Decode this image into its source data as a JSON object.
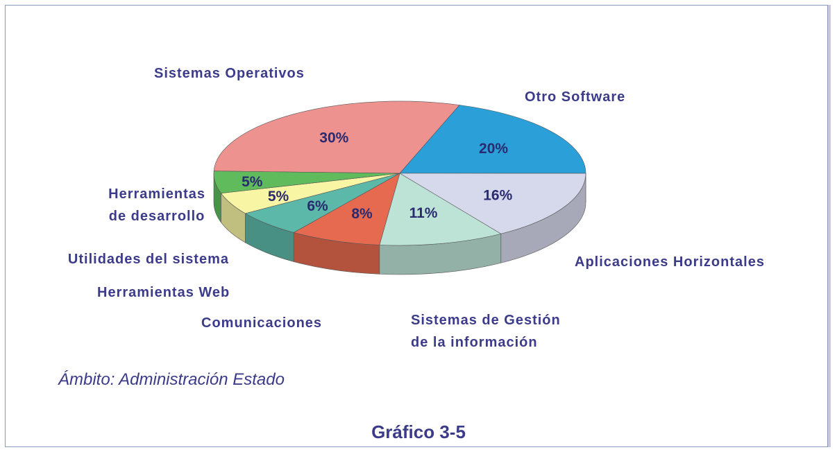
{
  "chart_data": {
    "type": "pie",
    "title": "Gráfico 3-5",
    "subtitle": "Ámbito: Administración Estado",
    "categories": [
      "Sistemas Operativos",
      "Otro Software",
      "Aplicaciones Horizontales",
      "Sistemas de Gestión\nde la información",
      "Comunicaciones",
      "Herramientas Web",
      "Utilidades del sistema",
      "Herramientas\nde desarrollo"
    ],
    "values": [
      30,
      20,
      16,
      11,
      8,
      6,
      5,
      5
    ],
    "value_labels": [
      "30%",
      "20%",
      "16%",
      "11%",
      "8%",
      "6%",
      "5%",
      "5%"
    ],
    "colors": [
      "#ee9290",
      "#2ba0d8",
      "#d6d8ec",
      "#bce3d6",
      "#e56a50",
      "#5cb9a9",
      "#f8f5a4",
      "#5fbb5c"
    ]
  }
}
